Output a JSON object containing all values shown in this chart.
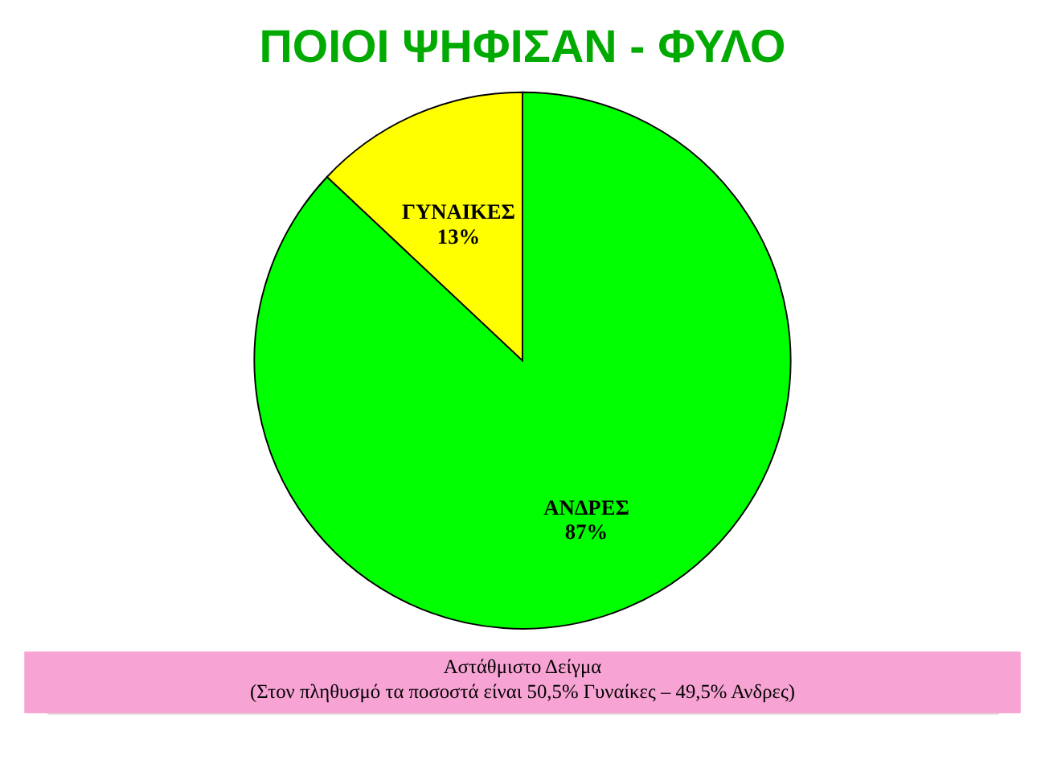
{
  "chart_data": {
    "type": "pie",
    "title": "ΠΟΙΟΙ ΨΗΦΙΣΑΝ - ΦΥΛΟ",
    "categories": [
      "ΑΝΔΡΕΣ",
      "ΓΥΝΑΙΚΕΣ"
    ],
    "values": [
      87,
      13
    ],
    "colors": [
      "#00ff00",
      "#ffff00"
    ],
    "value_labels": [
      "87%",
      "13%"
    ],
    "annotations": [
      "Αστάθμιστο Δείγμα",
      "(Στον πληθυσμό τα ποσοστά είναι 50,5% Γυναίκες – 49,5% Ανδρες)"
    ],
    "legend": false
  }
}
